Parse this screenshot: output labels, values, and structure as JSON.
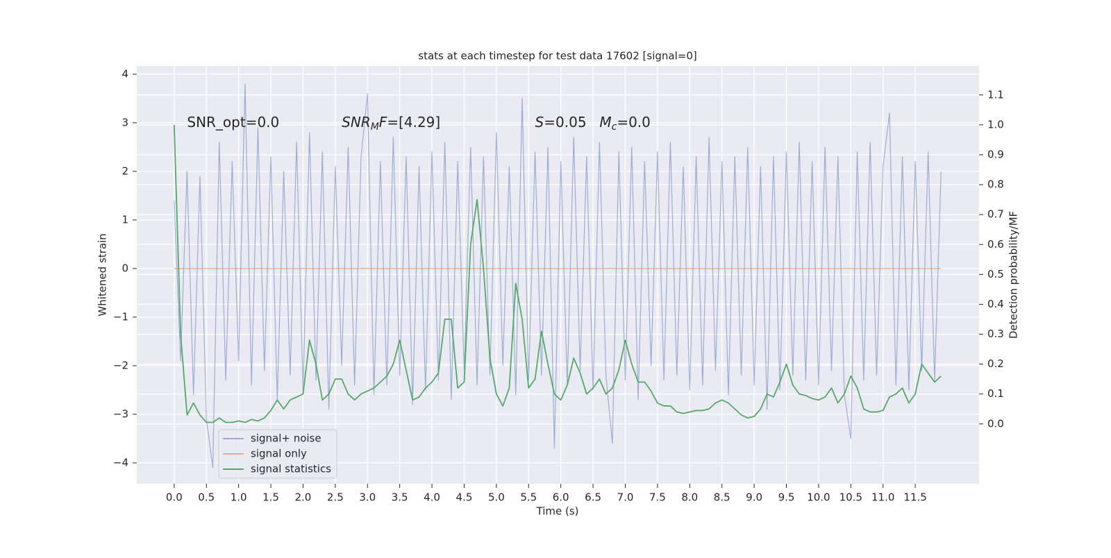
{
  "chart_data": {
    "type": "line",
    "title": "stats at each timestep for test data 17602 [signal=0]",
    "xlabel": "Time (s)",
    "ylabel": "Whitened strain",
    "y2label": "Detection probability/MF",
    "annotations": [
      [
        {
          "text": "SNR_opt=0.0"
        }
      ],
      [
        {
          "text": "SNR",
          "italic": true
        },
        {
          "text": "M",
          "italic": true,
          "sub": true
        },
        {
          "text": "F",
          "italic": true
        },
        {
          "text": "=[4.29]"
        }
      ],
      [
        {
          "text": "S",
          "italic": true
        },
        {
          "text": "=0.05"
        }
      ],
      [
        {
          "text": "M",
          "italic": true
        },
        {
          "text": "c",
          "italic": true,
          "sub": true
        },
        {
          "text": "=0.0"
        }
      ]
    ],
    "x": [
      0,
      0.1,
      0.2,
      0.3,
      0.4,
      0.5,
      0.6,
      0.7,
      0.8,
      0.9,
      1,
      1.1,
      1.2,
      1.3,
      1.4,
      1.5,
      1.6,
      1.7,
      1.8,
      1.9,
      2,
      2.1,
      2.2,
      2.3,
      2.4,
      2.5,
      2.6,
      2.7,
      2.8,
      2.9,
      3,
      3.1,
      3.2,
      3.3,
      3.4,
      3.5,
      3.6,
      3.7,
      3.8,
      3.9,
      4,
      4.1,
      4.2,
      4.3,
      4.4,
      4.5,
      4.6,
      4.7,
      4.8,
      4.9,
      5,
      5.1,
      5.2,
      5.3,
      5.4,
      5.5,
      5.6,
      5.7,
      5.8,
      5.9,
      6,
      6.1,
      6.2,
      6.3,
      6.4,
      6.5,
      6.6,
      6.7,
      6.8,
      6.9,
      7,
      7.1,
      7.2,
      7.3,
      7.4,
      7.5,
      7.6,
      7.7,
      7.8,
      7.9,
      8,
      8.1,
      8.2,
      8.3,
      8.4,
      8.5,
      8.6,
      8.7,
      8.8,
      8.9,
      9,
      9.1,
      9.2,
      9.3,
      9.4,
      9.5,
      9.6,
      9.7,
      9.8,
      9.9,
      10,
      10.1,
      10.2,
      10.3,
      10.4,
      10.5,
      10.6,
      10.7,
      10.8,
      10.9,
      11,
      11.1,
      11.2,
      11.3,
      11.4,
      11.5,
      11.6,
      11.7,
      11.8,
      11.9
    ],
    "series": [
      {
        "name": "signal+ noise",
        "color": "#4c72b0",
        "values": [
          1.4,
          -1.9,
          2.0,
          -2.6,
          1.9,
          -3.1,
          -4.1,
          2.6,
          -2.3,
          2.2,
          -1.9,
          3.8,
          -2.4,
          2.9,
          -2.1,
          2.3,
          -2.7,
          2.0,
          -2.2,
          2.6,
          -2.5,
          2.8,
          -2.3,
          2.4,
          -2.9,
          2.1,
          -2.0,
          2.5,
          -2.4,
          2.3,
          3.6,
          -2.6,
          2.2,
          -2.4,
          2.7,
          -2.2,
          2.3,
          -2.8,
          2.1,
          -2.5,
          2.4,
          -2.3,
          2.6,
          -2.7,
          2.2,
          -2.1,
          2.5,
          -2.4,
          2.3,
          -2.2,
          2.8,
          -2.0,
          2.1,
          -2.6,
          3.5,
          -2.3,
          2.4,
          -2.2,
          2.5,
          -3.7,
          2.2,
          -2.4,
          2.7,
          -2.1,
          2.3,
          -2.5,
          2.6,
          -2.2,
          -3.6,
          2.4,
          -2.3,
          2.5,
          -2.7,
          2.2,
          -2.0,
          2.4,
          -2.3,
          2.6,
          -2.2,
          2.1,
          -2.5,
          2.3,
          -2.4,
          2.7,
          -2.1,
          2.2,
          -2.6,
          2.3,
          -2.2,
          2.5,
          -2.4,
          2.1,
          -2.9,
          2.3,
          -2.5,
          2.4,
          -2.2,
          2.6,
          -2.3,
          2.2,
          -2.4,
          2.5,
          -2.1,
          2.3,
          -2.6,
          -3.5,
          2.4,
          -2.3,
          2.6,
          -2.2,
          2.1,
          3.2,
          -2.4,
          2.3,
          -2.5,
          2.2,
          -2.1,
          2.4,
          -2.3,
          2.0
        ]
      },
      {
        "name": "signal only",
        "color": "#dd8452",
        "values": [
          0,
          0,
          0,
          0,
          0,
          0,
          0,
          0,
          0,
          0,
          0,
          0,
          0,
          0,
          0,
          0,
          0,
          0,
          0,
          0,
          0,
          0,
          0,
          0,
          0,
          0,
          0,
          0,
          0,
          0,
          0,
          0,
          0,
          0,
          0,
          0,
          0,
          0,
          0,
          0,
          0,
          0,
          0,
          0,
          0,
          0,
          0,
          0,
          0,
          0,
          0,
          0,
          0,
          0,
          0,
          0,
          0,
          0,
          0,
          0,
          0,
          0,
          0,
          0,
          0,
          0,
          0,
          0,
          0,
          0,
          0,
          0,
          0,
          0,
          0,
          0,
          0,
          0,
          0,
          0,
          0,
          0,
          0,
          0,
          0,
          0,
          0,
          0,
          0,
          0,
          0,
          0,
          0,
          0,
          0,
          0,
          0,
          0,
          0,
          0,
          0,
          0,
          0,
          0,
          0,
          0,
          0,
          0,
          0,
          0,
          0,
          0,
          0,
          0,
          0,
          0,
          0,
          0,
          0,
          0
        ]
      },
      {
        "name": "signal statistics",
        "color": "#55a868",
        "axis": "y2",
        "values": [
          1.0,
          0.3,
          0.03,
          0.07,
          0.03,
          0.005,
          0.005,
          0.02,
          0.005,
          0.005,
          0.01,
          0.005,
          0.015,
          0.01,
          0.02,
          0.045,
          0.08,
          0.05,
          0.08,
          0.09,
          0.1,
          0.28,
          0.2,
          0.08,
          0.1,
          0.15,
          0.15,
          0.1,
          0.08,
          0.1,
          0.11,
          0.12,
          0.14,
          0.16,
          0.2,
          0.28,
          0.18,
          0.08,
          0.09,
          0.12,
          0.14,
          0.17,
          0.35,
          0.35,
          0.12,
          0.14,
          0.6,
          0.75,
          0.52,
          0.22,
          0.1,
          0.06,
          0.12,
          0.47,
          0.35,
          0.12,
          0.15,
          0.31,
          0.2,
          0.1,
          0.08,
          0.13,
          0.22,
          0.17,
          0.1,
          0.12,
          0.15,
          0.1,
          0.12,
          0.18,
          0.28,
          0.2,
          0.14,
          0.14,
          0.11,
          0.07,
          0.06,
          0.06,
          0.04,
          0.035,
          0.04,
          0.045,
          0.045,
          0.05,
          0.07,
          0.08,
          0.07,
          0.05,
          0.03,
          0.02,
          0.025,
          0.05,
          0.1,
          0.09,
          0.14,
          0.2,
          0.13,
          0.1,
          0.095,
          0.085,
          0.08,
          0.09,
          0.12,
          0.07,
          0.1,
          0.16,
          0.12,
          0.05,
          0.04,
          0.04,
          0.045,
          0.09,
          0.1,
          0.12,
          0.07,
          0.1,
          0.2,
          0.17,
          0.14,
          0.16
        ]
      }
    ],
    "xlim": [
      -0.58,
      12.49
    ],
    "xticks": [
      {
        "value": 0,
        "label": "0.0"
      },
      0.5,
      {
        "value": 1,
        "label": "1.0"
      },
      1.5,
      {
        "value": 2,
        "label": "2.0"
      },
      2.5,
      {
        "value": 3,
        "label": "3.0"
      },
      3.5,
      {
        "value": 4,
        "label": "4.0"
      },
      4.5,
      {
        "value": 5,
        "label": "5.0"
      },
      5.5,
      {
        "value": 6,
        "label": "6.0"
      },
      6.5,
      {
        "value": 7,
        "label": "7.0"
      },
      7.5,
      {
        "value": 8,
        "label": "8.0"
      },
      8.5,
      {
        "value": 9,
        "label": "9.0"
      },
      9.5,
      {
        "value": 10,
        "label": "10.0"
      },
      10.5,
      {
        "value": 11,
        "label": "11.0"
      },
      11.5
    ],
    "ylim": [
      -4.43,
      4.17
    ],
    "yticks": [
      {
        "value": -4,
        "label": "−4"
      },
      {
        "value": -3,
        "label": "−3"
      },
      {
        "value": -2,
        "label": "−2"
      },
      {
        "value": -1,
        "label": "−1"
      },
      0,
      1,
      2,
      3,
      4
    ],
    "y2lim": [
      -0.2,
      1.197
    ],
    "y2ticks": [
      {
        "value": 0,
        "label": "0.0"
      },
      0.1,
      0.2,
      0.3,
      0.4,
      0.5,
      0.6,
      0.7,
      0.8,
      0.9,
      {
        "value": 1,
        "label": "1.0"
      },
      1.1
    ],
    "grid": true,
    "legend": "lower left"
  }
}
